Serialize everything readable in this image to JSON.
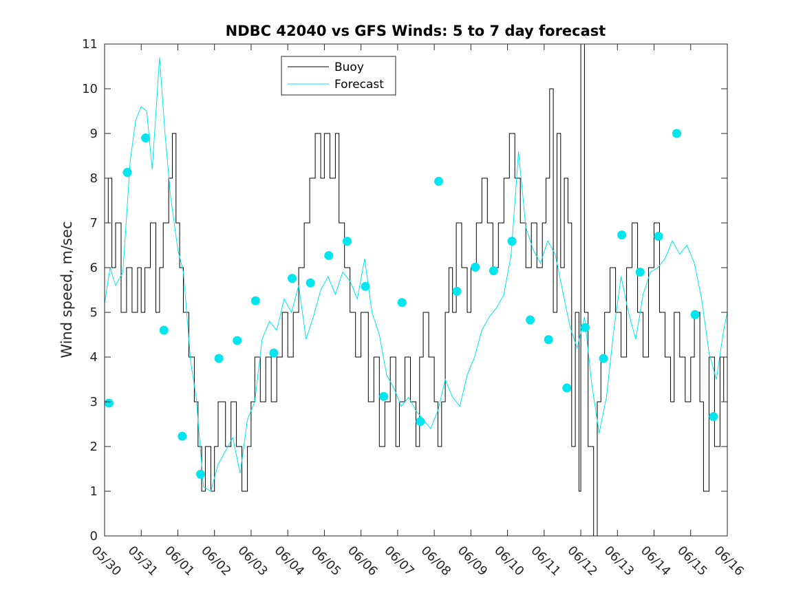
{
  "chart_data": {
    "type": "line",
    "title": "NDBC 42040 vs GFS Winds: 5 to 7 day forecast",
    "xlabel": "",
    "ylabel": "Wind speed, m/sec",
    "ylim": [
      0,
      11
    ],
    "yticks": [
      "0",
      "1",
      "2",
      "3",
      "4",
      "5",
      "6",
      "7",
      "8",
      "9",
      "10",
      "11"
    ],
    "x_range_days": [
      0,
      17
    ],
    "x_ticks": [
      "05/30",
      "05/31",
      "06/01",
      "06/02",
      "06/03",
      "06/04",
      "06/05",
      "06/06",
      "06/07",
      "06/08",
      "06/09",
      "06/10",
      "06/11",
      "06/12",
      "06/13",
      "06/14",
      "06/15",
      "06/16"
    ],
    "grid": false,
    "legend": {
      "position": "top-center",
      "entries": [
        {
          "label": "Buoy",
          "color": "#000000"
        },
        {
          "label": "Forecast",
          "color": "#00e5ee"
        }
      ]
    },
    "series": [
      {
        "name": "Buoy",
        "color": "#000000",
        "points": [
          [
            0.0,
            7
          ],
          [
            0.1,
            8
          ],
          [
            0.2,
            6
          ],
          [
            0.3,
            7
          ],
          [
            0.45,
            5
          ],
          [
            0.6,
            6
          ],
          [
            0.75,
            5
          ],
          [
            0.9,
            6
          ],
          [
            1.0,
            5
          ],
          [
            1.1,
            6
          ],
          [
            1.25,
            7
          ],
          [
            1.4,
            5
          ],
          [
            1.5,
            6
          ],
          [
            1.6,
            7
          ],
          [
            1.75,
            8
          ],
          [
            1.85,
            9
          ],
          [
            1.95,
            7
          ],
          [
            2.05,
            6
          ],
          [
            2.15,
            5
          ],
          [
            2.3,
            4
          ],
          [
            2.45,
            3
          ],
          [
            2.55,
            2
          ],
          [
            2.65,
            1
          ],
          [
            2.75,
            2
          ],
          [
            2.9,
            1
          ],
          [
            3.0,
            2
          ],
          [
            3.1,
            3
          ],
          [
            3.3,
            2
          ],
          [
            3.45,
            3
          ],
          [
            3.6,
            2
          ],
          [
            3.75,
            1
          ],
          [
            3.9,
            2
          ],
          [
            4.0,
            3
          ],
          [
            4.1,
            4
          ],
          [
            4.25,
            3
          ],
          [
            4.4,
            4
          ],
          [
            4.55,
            3
          ],
          [
            4.7,
            4
          ],
          [
            4.85,
            5
          ],
          [
            5.0,
            4
          ],
          [
            5.15,
            5
          ],
          [
            5.3,
            6
          ],
          [
            5.45,
            7
          ],
          [
            5.6,
            8
          ],
          [
            5.75,
            9
          ],
          [
            5.9,
            8
          ],
          [
            6.0,
            9
          ],
          [
            6.15,
            8
          ],
          [
            6.3,
            9
          ],
          [
            6.4,
            7
          ],
          [
            6.55,
            6
          ],
          [
            6.7,
            5
          ],
          [
            6.85,
            4
          ],
          [
            7.0,
            5
          ],
          [
            7.2,
            3
          ],
          [
            7.35,
            4
          ],
          [
            7.5,
            2
          ],
          [
            7.65,
            3
          ],
          [
            7.8,
            4
          ],
          [
            7.95,
            2
          ],
          [
            8.05,
            3
          ],
          [
            8.2,
            4
          ],
          [
            8.35,
            3
          ],
          [
            8.5,
            2
          ],
          [
            8.6,
            4
          ],
          [
            8.7,
            5
          ],
          [
            8.85,
            4
          ],
          [
            9.0,
            3
          ],
          [
            9.1,
            2
          ],
          [
            9.2,
            3
          ],
          [
            9.3,
            5
          ],
          [
            9.4,
            6
          ],
          [
            9.5,
            5
          ],
          [
            9.6,
            7
          ],
          [
            9.75,
            6
          ],
          [
            9.9,
            5
          ],
          [
            10.0,
            6
          ],
          [
            10.15,
            7
          ],
          [
            10.3,
            8
          ],
          [
            10.45,
            7
          ],
          [
            10.6,
            6
          ],
          [
            10.75,
            7
          ],
          [
            10.9,
            8
          ],
          [
            11.05,
            9
          ],
          [
            11.2,
            8
          ],
          [
            11.35,
            7
          ],
          [
            11.5,
            6
          ],
          [
            11.65,
            7
          ],
          [
            11.8,
            6
          ],
          [
            11.95,
            7
          ],
          [
            12.05,
            8
          ],
          [
            12.15,
            10
          ],
          [
            12.25,
            5
          ],
          [
            12.35,
            9
          ],
          [
            12.45,
            6
          ],
          [
            12.55,
            8
          ],
          [
            12.65,
            7
          ],
          [
            12.75,
            2
          ],
          [
            12.85,
            5
          ],
          [
            12.95,
            1
          ],
          [
            13.0,
            11
          ],
          [
            13.1,
            5
          ],
          [
            13.2,
            2
          ],
          [
            13.35,
            0
          ],
          [
            13.45,
            3
          ],
          [
            13.55,
            4
          ],
          [
            13.65,
            5
          ],
          [
            13.8,
            6
          ],
          [
            13.95,
            5
          ],
          [
            14.1,
            4
          ],
          [
            14.25,
            6
          ],
          [
            14.4,
            7
          ],
          [
            14.55,
            5
          ],
          [
            14.7,
            4
          ],
          [
            14.85,
            6
          ],
          [
            15.0,
            7
          ],
          [
            15.15,
            5
          ],
          [
            15.3,
            4
          ],
          [
            15.45,
            3
          ],
          [
            15.55,
            5
          ],
          [
            15.7,
            4
          ],
          [
            15.85,
            3
          ],
          [
            16.0,
            4
          ],
          [
            16.1,
            5
          ],
          [
            16.25,
            3
          ],
          [
            16.35,
            1
          ],
          [
            16.5,
            4
          ],
          [
            16.65,
            2
          ],
          [
            16.8,
            4
          ],
          [
            16.9,
            3
          ],
          [
            17.0,
            3
          ]
        ]
      },
      {
        "name": "Forecast",
        "color": "#00e5ee",
        "points": [
          [
            0.0,
            5.2
          ],
          [
            0.15,
            6.0
          ],
          [
            0.3,
            5.6
          ],
          [
            0.5,
            5.9
          ],
          [
            0.7,
            8.4
          ],
          [
            0.85,
            9.3
          ],
          [
            1.0,
            9.6
          ],
          [
            1.15,
            9.5
          ],
          [
            1.3,
            8.2
          ],
          [
            1.5,
            10.7
          ],
          [
            1.65,
            9.0
          ],
          [
            1.8,
            7.6
          ],
          [
            2.0,
            6.4
          ],
          [
            2.15,
            5.9
          ],
          [
            2.35,
            3.9
          ],
          [
            2.5,
            3.1
          ],
          [
            2.7,
            1.1
          ],
          [
            2.9,
            1.0
          ],
          [
            3.1,
            1.6
          ],
          [
            3.3,
            1.9
          ],
          [
            3.5,
            2.2
          ],
          [
            3.7,
            1.4
          ],
          [
            3.9,
            2.6
          ],
          [
            4.1,
            3.0
          ],
          [
            4.3,
            4.4
          ],
          [
            4.5,
            4.8
          ],
          [
            4.7,
            4.6
          ],
          [
            4.9,
            5.3
          ],
          [
            5.1,
            5.0
          ],
          [
            5.3,
            5.6
          ],
          [
            5.5,
            4.4
          ],
          [
            5.7,
            4.9
          ],
          [
            5.9,
            5.5
          ],
          [
            6.1,
            5.8
          ],
          [
            6.3,
            5.4
          ],
          [
            6.5,
            5.9
          ],
          [
            6.7,
            5.7
          ],
          [
            6.9,
            5.3
          ],
          [
            7.1,
            6.2
          ],
          [
            7.3,
            5.0
          ],
          [
            7.5,
            4.5
          ],
          [
            7.7,
            3.6
          ],
          [
            7.9,
            3.3
          ],
          [
            8.1,
            2.9
          ],
          [
            8.3,
            3.1
          ],
          [
            8.5,
            2.8
          ],
          [
            8.7,
            2.6
          ],
          [
            8.9,
            2.4
          ],
          [
            9.1,
            2.8
          ],
          [
            9.3,
            3.5
          ],
          [
            9.5,
            3.1
          ],
          [
            9.7,
            2.9
          ],
          [
            9.9,
            3.6
          ],
          [
            10.1,
            4.0
          ],
          [
            10.3,
            4.6
          ],
          [
            10.5,
            4.9
          ],
          [
            10.7,
            5.1
          ],
          [
            10.9,
            5.4
          ],
          [
            11.1,
            6.3
          ],
          [
            11.3,
            8.6
          ],
          [
            11.5,
            6.9
          ],
          [
            11.7,
            6.4
          ],
          [
            11.9,
            6.1
          ],
          [
            12.1,
            6.6
          ],
          [
            12.3,
            6.3
          ],
          [
            12.5,
            5.5
          ],
          [
            12.7,
            4.7
          ],
          [
            12.9,
            4.2
          ],
          [
            13.1,
            4.9
          ],
          [
            13.3,
            3.4
          ],
          [
            13.5,
            2.3
          ],
          [
            13.7,
            3.1
          ],
          [
            13.9,
            4.6
          ],
          [
            14.1,
            5.8
          ],
          [
            14.3,
            5.0
          ],
          [
            14.5,
            4.4
          ],
          [
            14.7,
            5.4
          ],
          [
            14.9,
            5.9
          ],
          [
            15.1,
            6.0
          ],
          [
            15.3,
            6.2
          ],
          [
            15.5,
            6.6
          ],
          [
            15.7,
            6.3
          ],
          [
            15.9,
            6.5
          ],
          [
            16.1,
            6.1
          ],
          [
            16.3,
            5.3
          ],
          [
            16.5,
            4.1
          ],
          [
            16.7,
            3.5
          ],
          [
            16.9,
            4.6
          ],
          [
            17.0,
            5.0
          ]
        ]
      }
    ],
    "forecast_markers": [
      [
        0.12,
        2.97
      ],
      [
        0.62,
        8.13
      ],
      [
        1.12,
        8.9
      ],
      [
        1.62,
        4.6
      ],
      [
        2.12,
        2.23
      ],
      [
        2.62,
        1.38
      ],
      [
        3.12,
        3.97
      ],
      [
        3.62,
        4.37
      ],
      [
        4.12,
        5.26
      ],
      [
        4.62,
        4.09
      ],
      [
        5.12,
        5.76
      ],
      [
        5.62,
        5.66
      ],
      [
        6.12,
        6.27
      ],
      [
        6.62,
        6.59
      ],
      [
        7.12,
        5.58
      ],
      [
        7.62,
        3.12
      ],
      [
        8.12,
        5.22
      ],
      [
        8.62,
        2.56
      ],
      [
        9.12,
        7.93
      ],
      [
        9.62,
        5.47
      ],
      [
        10.12,
        6.01
      ],
      [
        10.62,
        5.93
      ],
      [
        11.12,
        6.59
      ],
      [
        11.62,
        4.83
      ],
      [
        12.12,
        4.39
      ],
      [
        12.62,
        3.31
      ],
      [
        13.12,
        4.66
      ],
      [
        13.62,
        3.97
      ],
      [
        14.12,
        6.73
      ],
      [
        14.62,
        5.9
      ],
      [
        15.12,
        6.7
      ],
      [
        15.62,
        9.0
      ],
      [
        16.12,
        4.95
      ],
      [
        16.62,
        2.67
      ]
    ],
    "marker_color": "#00e5ee"
  }
}
